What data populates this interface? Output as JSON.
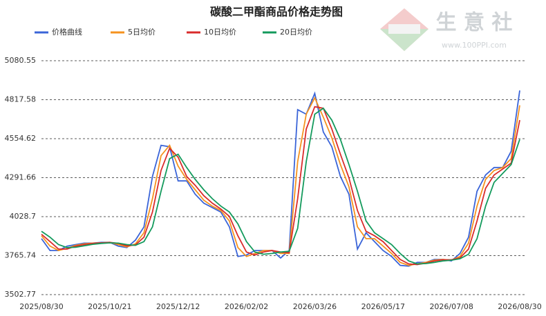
{
  "chart_data": {
    "type": "line",
    "title": "碳酸二甲酯商品价格走势图",
    "categories": [
      "2025/08/30",
      null,
      null,
      null,
      null,
      null,
      null,
      null,
      "2025/10/21",
      null,
      null,
      null,
      null,
      null,
      null,
      null,
      "2025/12/12",
      null,
      null,
      null,
      null,
      null,
      null,
      null,
      "2026/02/02",
      null,
      null,
      null,
      null,
      null,
      null,
      null,
      "2026/03/26",
      null,
      null,
      null,
      null,
      null,
      null,
      null,
      "2026/05/17",
      null,
      null,
      null,
      null,
      null,
      null,
      null,
      "2026/07/08",
      null,
      null,
      null,
      null,
      null,
      null,
      null,
      "2026/08/30"
    ],
    "series": [
      {
        "name": "价格曲线",
        "color": "#3a64d8",
        "values": [
          3880,
          3800,
          3800,
          3830,
          3840,
          3850,
          3850,
          3855,
          3855,
          3830,
          3820,
          3870,
          3960,
          4300,
          4510,
          4500,
          4270,
          4270,
          4180,
          4120,
          4090,
          4060,
          3960,
          3760,
          3770,
          3800,
          3800,
          3800,
          3750,
          3800,
          4750,
          4720,
          4860,
          4600,
          4500,
          4300,
          4180,
          3810,
          3920,
          3860,
          3800,
          3760,
          3700,
          3695,
          3720,
          3720,
          3740,
          3740,
          3730,
          3780,
          3890,
          4200,
          4310,
          4360,
          4360,
          4470,
          4880
        ]
      },
      {
        "name": "5日均价",
        "color": "#f5921e",
        "values": [
          3900,
          3830,
          3800,
          3815,
          3835,
          3845,
          3850,
          3852,
          3855,
          3840,
          3825,
          3845,
          3920,
          4150,
          4440,
          4510,
          4370,
          4280,
          4210,
          4140,
          4100,
          4070,
          4000,
          3820,
          3760,
          3780,
          3800,
          3800,
          3780,
          3780,
          4400,
          4720,
          4830,
          4700,
          4560,
          4380,
          4230,
          3960,
          3880,
          3880,
          3830,
          3780,
          3720,
          3700,
          3710,
          3720,
          3735,
          3740,
          3735,
          3760,
          3850,
          4100,
          4280,
          4340,
          4360,
          4420,
          4780
        ]
      },
      {
        "name": "10日均价",
        "color": "#d92b2b",
        "values": [
          3910,
          3860,
          3810,
          3810,
          3830,
          3840,
          3848,
          3852,
          3855,
          3848,
          3832,
          3838,
          3890,
          4060,
          4340,
          4490,
          4430,
          4300,
          4240,
          4170,
          4120,
          4080,
          4030,
          3900,
          3790,
          3770,
          3790,
          3800,
          3790,
          3785,
          4150,
          4620,
          4770,
          4760,
          4620,
          4450,
          4290,
          4070,
          3930,
          3900,
          3860,
          3800,
          3740,
          3710,
          3705,
          3715,
          3730,
          3738,
          3738,
          3750,
          3810,
          4000,
          4220,
          4310,
          4350,
          4390,
          4680
        ]
      },
      {
        "name": "20日均价",
        "color": "#139a5c",
        "values": [
          3930,
          3890,
          3840,
          3820,
          3822,
          3832,
          3842,
          3848,
          3852,
          3850,
          3840,
          3835,
          3860,
          3960,
          4200,
          4420,
          4450,
          4360,
          4280,
          4210,
          4150,
          4100,
          4060,
          3980,
          3860,
          3790,
          3775,
          3780,
          3790,
          3795,
          3950,
          4400,
          4720,
          4760,
          4680,
          4550,
          4380,
          4200,
          4000,
          3920,
          3880,
          3840,
          3780,
          3730,
          3710,
          3712,
          3720,
          3730,
          3735,
          3745,
          3775,
          3880,
          4100,
          4260,
          4320,
          4380,
          4550
        ]
      }
    ],
    "ylim": [
      3502.77,
      5080.55
    ],
    "yticks": [
      3502.77,
      3765.74,
      4028.7,
      4291.66,
      4554.62,
      4817.58,
      5080.55
    ],
    "grid": true,
    "watermark": {
      "name": "生 意 社",
      "url": "www.100PPI.com"
    }
  }
}
